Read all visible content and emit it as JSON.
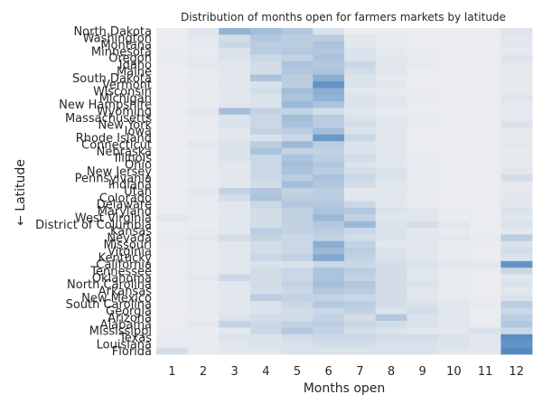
{
  "chart_data": {
    "type": "heatmap",
    "title": "Distribution of months open for farmers markets by latitude",
    "xlabel": "Months open",
    "ylabel": "← Latitude",
    "x": [
      "1",
      "2",
      "3",
      "4",
      "5",
      "6",
      "7",
      "8",
      "9",
      "10",
      "11",
      "12"
    ],
    "y": [
      "North Dakota",
      "Washington",
      "Montana",
      "Minnesota",
      "Oregon",
      "Idaho",
      "Maine",
      "South Dakota",
      "Vermont",
      "Wisconsin",
      "Michigan",
      "New Hampshire",
      "Wyoming",
      "Massachusetts",
      "New York",
      "Iowa",
      "Rhode Island",
      "Connecticut",
      "Nebraska",
      "Illinois",
      "Ohio",
      "New Jersey",
      "Pennsylvania",
      "Indiana",
      "Utah",
      "Colorado",
      "Delaware",
      "Maryland",
      "West Virginia",
      "District of Columbia",
      "Kansas",
      "Nevada",
      "Missouri",
      "Virginia",
      "Kentucky",
      "California",
      "Tennessee",
      "Oklahoma",
      "North Carolina",
      "Arkansas",
      "New Mexico",
      "South Carolina",
      "Georgia",
      "Arizona",
      "Alabama",
      "Mississippi",
      "Texas",
      "Louisiana",
      "Florida"
    ],
    "color_low": "#eaecf0",
    "color_high": "#4c85bd",
    "values": [
      [
        0.0,
        0.08,
        0.55,
        0.45,
        0.35,
        0.1,
        0.0,
        0.0,
        0.0,
        0.0,
        0.0,
        0.08
      ],
      [
        0.0,
        0.05,
        0.15,
        0.35,
        0.3,
        0.3,
        0.05,
        0.02,
        0.0,
        0.0,
        0.0,
        0.05
      ],
      [
        0.0,
        0.03,
        0.2,
        0.3,
        0.3,
        0.4,
        0.05,
        0.02,
        0.0,
        0.0,
        0.0,
        0.05
      ],
      [
        0.0,
        0.02,
        0.1,
        0.3,
        0.35,
        0.35,
        0.1,
        0.03,
        0.0,
        0.0,
        0.0,
        0.03
      ],
      [
        0.02,
        0.03,
        0.1,
        0.2,
        0.25,
        0.4,
        0.1,
        0.05,
        0.02,
        0.0,
        0.0,
        0.08
      ],
      [
        0.0,
        0.05,
        0.05,
        0.15,
        0.4,
        0.35,
        0.2,
        0.05,
        0.02,
        0.0,
        0.0,
        0.03
      ],
      [
        0.0,
        0.02,
        0.05,
        0.15,
        0.35,
        0.4,
        0.15,
        0.05,
        0.0,
        0.0,
        0.0,
        0.03
      ],
      [
        0.0,
        0.02,
        0.05,
        0.4,
        0.3,
        0.6,
        0.1,
        0.02,
        0.0,
        0.0,
        0.0,
        0.02
      ],
      [
        0.0,
        0.0,
        0.05,
        0.1,
        0.3,
        0.85,
        0.1,
        0.05,
        0.0,
        0.0,
        0.0,
        0.03
      ],
      [
        0.0,
        0.02,
        0.05,
        0.15,
        0.45,
        0.6,
        0.05,
        0.02,
        0.0,
        0.0,
        0.0,
        0.03
      ],
      [
        0.0,
        0.02,
        0.05,
        0.1,
        0.4,
        0.55,
        0.1,
        0.05,
        0.02,
        0.0,
        0.0,
        0.08
      ],
      [
        0.0,
        0.02,
        0.05,
        0.1,
        0.5,
        0.4,
        0.1,
        0.05,
        0.0,
        0.0,
        0.0,
        0.03
      ],
      [
        0.0,
        0.05,
        0.45,
        0.25,
        0.25,
        0.15,
        0.05,
        0.02,
        0.0,
        0.0,
        0.0,
        0.03
      ],
      [
        0.0,
        0.02,
        0.1,
        0.2,
        0.45,
        0.3,
        0.1,
        0.05,
        0.02,
        0.0,
        0.0,
        0.03
      ],
      [
        0.0,
        0.02,
        0.1,
        0.2,
        0.4,
        0.3,
        0.15,
        0.05,
        0.02,
        0.0,
        0.0,
        0.1
      ],
      [
        0.0,
        0.02,
        0.05,
        0.25,
        0.3,
        0.45,
        0.1,
        0.05,
        0.0,
        0.0,
        0.0,
        0.03
      ],
      [
        0.0,
        0.0,
        0.05,
        0.1,
        0.2,
        0.8,
        0.2,
        0.05,
        0.0,
        0.0,
        0.0,
        0.03
      ],
      [
        0.0,
        0.05,
        0.1,
        0.3,
        0.5,
        0.3,
        0.1,
        0.05,
        0.0,
        0.0,
        0.0,
        0.05
      ],
      [
        0.0,
        0.02,
        0.1,
        0.4,
        0.25,
        0.25,
        0.1,
        0.05,
        0.0,
        0.0,
        0.0,
        0.03
      ],
      [
        0.0,
        0.02,
        0.1,
        0.2,
        0.4,
        0.3,
        0.15,
        0.05,
        0.02,
        0.0,
        0.0,
        0.03
      ],
      [
        0.0,
        0.02,
        0.05,
        0.2,
        0.45,
        0.35,
        0.1,
        0.05,
        0.02,
        0.0,
        0.0,
        0.03
      ],
      [
        0.0,
        0.02,
        0.05,
        0.2,
        0.4,
        0.3,
        0.15,
        0.1,
        0.02,
        0.0,
        0.0,
        0.05
      ],
      [
        0.0,
        0.02,
        0.05,
        0.2,
        0.3,
        0.4,
        0.2,
        0.1,
        0.02,
        0.0,
        0.0,
        0.15
      ],
      [
        0.0,
        0.02,
        0.05,
        0.15,
        0.45,
        0.35,
        0.15,
        0.05,
        0.02,
        0.0,
        0.0,
        0.03
      ],
      [
        0.0,
        0.05,
        0.25,
        0.35,
        0.25,
        0.3,
        0.05,
        0.05,
        0.02,
        0.0,
        0.0,
        0.03
      ],
      [
        0.0,
        0.02,
        0.15,
        0.4,
        0.3,
        0.3,
        0.05,
        0.05,
        0.0,
        0.0,
        0.0,
        0.05
      ],
      [
        0.0,
        0.02,
        0.05,
        0.2,
        0.35,
        0.35,
        0.2,
        0.05,
        0.02,
        0.0,
        0.0,
        0.05
      ],
      [
        0.0,
        0.02,
        0.05,
        0.15,
        0.25,
        0.4,
        0.35,
        0.1,
        0.05,
        0.02,
        0.0,
        0.1
      ],
      [
        0.05,
        0.02,
        0.05,
        0.15,
        0.25,
        0.5,
        0.25,
        0.05,
        0.05,
        0.0,
        0.0,
        0.05
      ],
      [
        0.0,
        0.0,
        0.05,
        0.15,
        0.25,
        0.35,
        0.5,
        0.1,
        0.15,
        0.05,
        0.0,
        0.1
      ],
      [
        0.0,
        0.02,
        0.05,
        0.3,
        0.25,
        0.3,
        0.2,
        0.1,
        0.05,
        0.02,
        0.0,
        0.05
      ],
      [
        0.02,
        0.05,
        0.15,
        0.25,
        0.2,
        0.25,
        0.15,
        0.1,
        0.05,
        0.05,
        0.02,
        0.3
      ],
      [
        0.0,
        0.02,
        0.05,
        0.15,
        0.2,
        0.6,
        0.25,
        0.05,
        0.05,
        0.02,
        0.0,
        0.1
      ],
      [
        0.0,
        0.02,
        0.05,
        0.15,
        0.2,
        0.5,
        0.3,
        0.1,
        0.05,
        0.02,
        0.0,
        0.15
      ],
      [
        0.0,
        0.02,
        0.05,
        0.2,
        0.25,
        0.65,
        0.25,
        0.1,
        0.05,
        0.02,
        0.0,
        0.1
      ],
      [
        0.0,
        0.02,
        0.05,
        0.1,
        0.1,
        0.2,
        0.2,
        0.15,
        0.1,
        0.05,
        0.05,
        0.85
      ],
      [
        0.0,
        0.02,
        0.05,
        0.15,
        0.2,
        0.4,
        0.3,
        0.15,
        0.05,
        0.02,
        0.0,
        0.2
      ],
      [
        0.0,
        0.05,
        0.2,
        0.15,
        0.2,
        0.4,
        0.25,
        0.15,
        0.05,
        0.02,
        0.0,
        0.05
      ],
      [
        0.0,
        0.02,
        0.05,
        0.15,
        0.25,
        0.45,
        0.35,
        0.15,
        0.1,
        0.02,
        0.0,
        0.1
      ],
      [
        0.0,
        0.02,
        0.05,
        0.15,
        0.2,
        0.35,
        0.3,
        0.15,
        0.05,
        0.02,
        0.0,
        0.05
      ],
      [
        0.0,
        0.02,
        0.05,
        0.3,
        0.25,
        0.25,
        0.2,
        0.15,
        0.05,
        0.02,
        0.0,
        0.1
      ],
      [
        0.0,
        0.02,
        0.05,
        0.1,
        0.2,
        0.35,
        0.3,
        0.15,
        0.1,
        0.05,
        0.02,
        0.3
      ],
      [
        0.0,
        0.02,
        0.05,
        0.1,
        0.15,
        0.2,
        0.25,
        0.1,
        0.15,
        0.05,
        0.0,
        0.2
      ],
      [
        0.0,
        0.0,
        0.1,
        0.15,
        0.15,
        0.25,
        0.15,
        0.35,
        0.1,
        0.05,
        0.0,
        0.3
      ],
      [
        0.0,
        0.05,
        0.25,
        0.2,
        0.25,
        0.3,
        0.2,
        0.15,
        0.1,
        0.05,
        0.02,
        0.35
      ],
      [
        0.0,
        0.0,
        0.05,
        0.2,
        0.35,
        0.25,
        0.15,
        0.1,
        0.05,
        0.05,
        0.1,
        0.2
      ],
      [
        0.02,
        0.02,
        0.1,
        0.1,
        0.15,
        0.2,
        0.2,
        0.15,
        0.15,
        0.1,
        0.05,
        0.9
      ],
      [
        0.02,
        0.02,
        0.05,
        0.1,
        0.1,
        0.15,
        0.15,
        0.1,
        0.1,
        0.1,
        0.05,
        0.85
      ],
      [
        0.15,
        0.02,
        0.05,
        0.05,
        0.1,
        0.1,
        0.1,
        0.1,
        0.1,
        0.05,
        0.05,
        0.95
      ]
    ]
  }
}
